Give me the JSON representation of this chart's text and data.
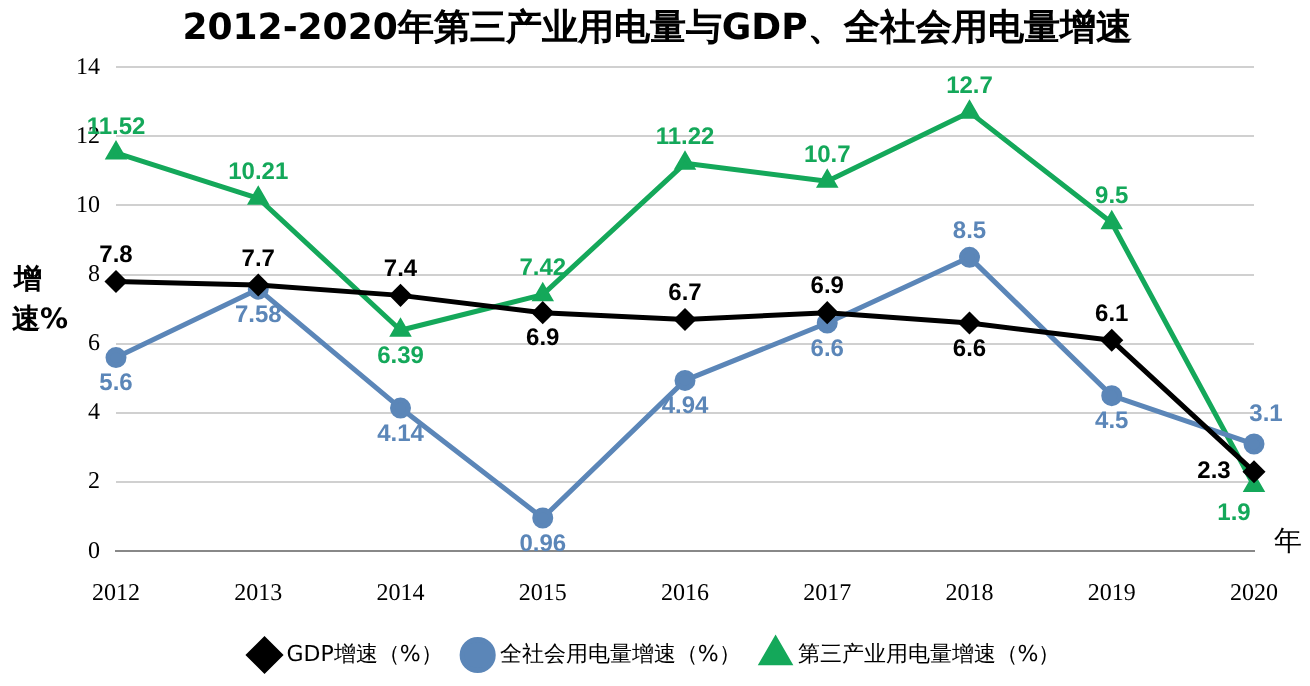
{
  "chart_data": {
    "type": "line",
    "title": "2012-2020年第三产业用电量与GDP、全社会用电量增速",
    "ylabel": "增速%",
    "xlabel": "年",
    "categories": [
      "2012",
      "2013",
      "2014",
      "2015",
      "2016",
      "2017",
      "2018",
      "2019",
      "2020"
    ],
    "series": [
      {
        "name": "GDP增速（%）",
        "color": "#000000",
        "marker": "diamond",
        "values": [
          7.8,
          7.7,
          7.4,
          6.9,
          6.7,
          6.9,
          6.6,
          6.1,
          2.3
        ]
      },
      {
        "name": "全社会用电量增速（%）",
        "color": "#5b86b8",
        "marker": "circle",
        "values": [
          5.6,
          7.58,
          4.14,
          0.96,
          4.94,
          6.6,
          8.5,
          4.5,
          3.1
        ]
      },
      {
        "name": "第三产业用电量增速（%）",
        "color": "#14a85a",
        "marker": "triangle",
        "values": [
          11.52,
          10.21,
          6.39,
          7.42,
          11.22,
          10.7,
          12.7,
          9.5,
          1.9
        ]
      }
    ],
    "ylim": [
      0,
      14
    ],
    "yticks": [
      0,
      2,
      4,
      6,
      8,
      10,
      12,
      14
    ],
    "grid": "y",
    "legend": "bottom",
    "data_labels": true,
    "line_style": "solid"
  }
}
